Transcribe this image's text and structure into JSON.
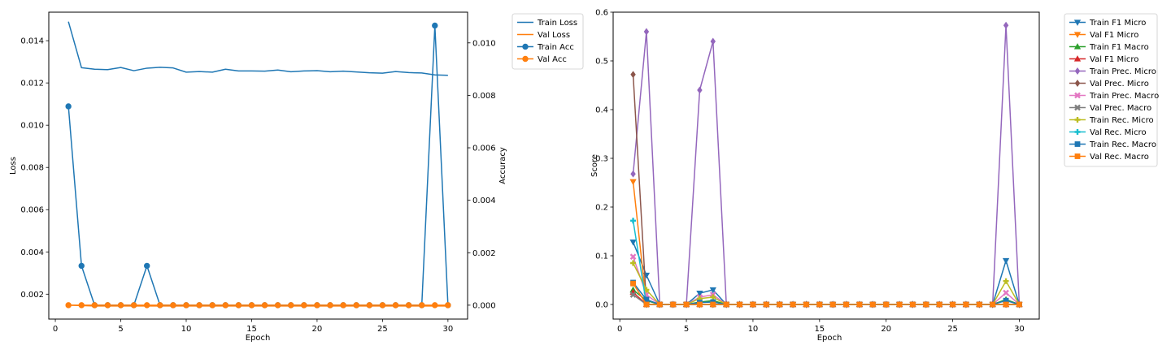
{
  "chart_data": [
    {
      "type": "line",
      "xlabel": "Epoch",
      "ylabel": "Loss",
      "y2label": "Accuracy",
      "xlim": [
        -0.5,
        31.5
      ],
      "ylim": [
        0.00082,
        0.01535
      ],
      "y2lim": [
        -0.00053,
        0.01117
      ],
      "xticks": [
        0,
        5,
        10,
        15,
        20,
        25,
        30
      ],
      "yticks": [
        0.002,
        0.004,
        0.006,
        0.008,
        0.01,
        0.012,
        0.014
      ],
      "y2ticks": [
        0.0,
        0.002,
        0.004,
        0.006,
        0.008,
        0.01
      ],
      "ytick_labels": [
        "0.002",
        "0.004",
        "0.006",
        "0.008",
        "0.010",
        "0.012",
        "0.014"
      ],
      "y2tick_labels": [
        "0.000",
        "0.002",
        "0.004",
        "0.006",
        "0.008",
        "0.010"
      ],
      "x": [
        1,
        2,
        3,
        4,
        5,
        6,
        7,
        8,
        9,
        10,
        11,
        12,
        13,
        14,
        15,
        16,
        17,
        18,
        19,
        20,
        21,
        22,
        23,
        24,
        25,
        26,
        27,
        28,
        29,
        30
      ],
      "legend": "outside-right-top",
      "series": [
        {
          "name": "Train Loss",
          "axis": "left",
          "marker": "none",
          "color": "#1f77b4",
          "values": [
            0.0149,
            0.01272,
            0.01265,
            0.01263,
            0.01273,
            0.01258,
            0.0127,
            0.01274,
            0.01271,
            0.01251,
            0.01254,
            0.01251,
            0.01265,
            0.01257,
            0.01257,
            0.01256,
            0.01261,
            0.01253,
            0.01257,
            0.01258,
            0.01253,
            0.01256,
            0.01252,
            0.01248,
            0.01246,
            0.01254,
            0.01249,
            0.01247,
            0.01238,
            0.01236
          ]
        },
        {
          "name": "Val Loss",
          "axis": "left",
          "marker": "none",
          "color": "#ff7f0e",
          "values": [
            0.00148,
            0.00146,
            0.00144,
            0.00144,
            0.00144,
            0.00144,
            0.00144,
            0.00144,
            0.00144,
            0.00144,
            0.00144,
            0.00144,
            0.00144,
            0.00144,
            0.00144,
            0.00144,
            0.00144,
            0.00144,
            0.00144,
            0.00144,
            0.00144,
            0.00144,
            0.00144,
            0.00144,
            0.00144,
            0.00144,
            0.00144,
            0.00144,
            0.00144,
            0.00144
          ]
        },
        {
          "name": "Train Acc",
          "axis": "right",
          "marker": "circle",
          "color": "#1f77b4",
          "values": [
            0.00758,
            0.0015,
            0,
            0,
            0,
            0,
            0.0015,
            0,
            0,
            0,
            0,
            0,
            0,
            0,
            0,
            0,
            0,
            0,
            0,
            0,
            0,
            0,
            0,
            0,
            0,
            0,
            0,
            0,
            0.01066,
            0
          ]
        },
        {
          "name": "Val Acc",
          "axis": "right",
          "marker": "circle",
          "color": "#ff7f0e",
          "values": [
            0,
            0,
            0,
            0,
            0,
            0,
            0,
            0,
            0,
            0,
            0,
            0,
            0,
            0,
            0,
            0,
            0,
            0,
            0,
            0,
            0,
            0,
            0,
            0,
            0,
            0,
            0,
            0,
            0,
            0
          ]
        }
      ]
    },
    {
      "type": "line",
      "xlabel": "Epoch",
      "ylabel": "Score",
      "xlim": [
        -0.5,
        31.5
      ],
      "ylim": [
        -0.03,
        0.6
      ],
      "xticks": [
        0,
        5,
        10,
        15,
        20,
        25,
        30
      ],
      "yticks": [
        0.0,
        0.1,
        0.2,
        0.3,
        0.4,
        0.5,
        0.6
      ],
      "ytick_labels": [
        "0.0",
        "0.1",
        "0.2",
        "0.3",
        "0.4",
        "0.5",
        "0.6"
      ],
      "x": [
        1,
        2,
        3,
        4,
        5,
        6,
        7,
        8,
        9,
        10,
        11,
        12,
        13,
        14,
        15,
        16,
        17,
        18,
        19,
        20,
        21,
        22,
        23,
        24,
        25,
        26,
        27,
        28,
        29,
        30
      ],
      "legend": "outside-right-top",
      "series": [
        {
          "name": "Train F1 Micro",
          "marker": "tri-down",
          "color": "#1f77b4",
          "values": [
            0.128,
            0.06,
            0,
            0,
            0,
            0.023,
            0.03,
            0,
            0,
            0,
            0,
            0,
            0,
            0,
            0,
            0,
            0,
            0,
            0,
            0,
            0,
            0,
            0,
            0,
            0,
            0,
            0,
            0,
            0.09,
            0
          ]
        },
        {
          "name": "Val F1 Micro",
          "marker": "tri-down",
          "color": "#ff7f0e",
          "values": [
            0.252,
            0,
            0,
            0,
            0,
            0,
            0,
            0,
            0,
            0,
            0,
            0,
            0,
            0,
            0,
            0,
            0,
            0,
            0,
            0,
            0,
            0,
            0,
            0,
            0,
            0,
            0,
            0,
            0,
            0
          ]
        },
        {
          "name": "Train F1 Macro",
          "marker": "tri-up",
          "color": "#2ca02c",
          "values": [
            0.03,
            0.008,
            0,
            0,
            0,
            0.005,
            0.008,
            0,
            0,
            0,
            0,
            0,
            0,
            0,
            0,
            0,
            0,
            0,
            0,
            0,
            0,
            0,
            0,
            0,
            0,
            0,
            0,
            0,
            0.01,
            0
          ]
        },
        {
          "name": "Val F1 Micro",
          "marker": "tri-up",
          "color": "#d62728",
          "values": [
            0.025,
            0,
            0,
            0,
            0,
            0,
            0,
            0,
            0,
            0,
            0,
            0,
            0,
            0,
            0,
            0,
            0,
            0,
            0,
            0,
            0,
            0,
            0,
            0,
            0,
            0,
            0,
            0,
            0,
            0
          ]
        },
        {
          "name": "Train Prec. Micro",
          "marker": "diamond",
          "color": "#9467bd",
          "values": [
            0.268,
            0.56,
            0,
            0,
            0,
            0.44,
            0.54,
            0,
            0,
            0,
            0,
            0,
            0,
            0,
            0,
            0,
            0,
            0,
            0,
            0,
            0,
            0,
            0,
            0,
            0,
            0,
            0,
            0,
            0.573,
            0
          ]
        },
        {
          "name": "Val Prec. Micro",
          "marker": "diamond",
          "color": "#8c564b",
          "values": [
            0.472,
            0,
            0,
            0,
            0,
            0,
            0,
            0,
            0,
            0,
            0,
            0,
            0,
            0,
            0,
            0,
            0,
            0,
            0,
            0,
            0,
            0,
            0,
            0,
            0,
            0,
            0,
            0,
            0,
            0
          ]
        },
        {
          "name": "Train Prec. Macro",
          "marker": "x",
          "color": "#e377c2",
          "values": [
            0.098,
            0.02,
            0,
            0,
            0,
            0.015,
            0.02,
            0,
            0,
            0,
            0,
            0,
            0,
            0,
            0,
            0,
            0,
            0,
            0,
            0,
            0,
            0,
            0,
            0,
            0,
            0,
            0,
            0,
            0.024,
            0
          ]
        },
        {
          "name": "Val Prec. Macro",
          "marker": "x",
          "color": "#7f7f7f",
          "values": [
            0.02,
            0,
            0,
            0,
            0,
            0,
            0,
            0,
            0,
            0,
            0,
            0,
            0,
            0,
            0,
            0,
            0,
            0,
            0,
            0,
            0,
            0,
            0,
            0,
            0,
            0,
            0,
            0,
            0,
            0
          ]
        },
        {
          "name": "Train Rec. Micro",
          "marker": "plus",
          "color": "#bcbd22",
          "values": [
            0.085,
            0.03,
            0,
            0,
            0,
            0.012,
            0.015,
            0,
            0,
            0,
            0,
            0,
            0,
            0,
            0,
            0,
            0,
            0,
            0,
            0,
            0,
            0,
            0,
            0,
            0,
            0,
            0,
            0,
            0.048,
            0
          ]
        },
        {
          "name": "Val Rec. Micro",
          "marker": "plus",
          "color": "#17becf",
          "values": [
            0.172,
            0,
            0,
            0,
            0,
            0,
            0,
            0,
            0,
            0,
            0,
            0,
            0,
            0,
            0,
            0,
            0,
            0,
            0,
            0,
            0,
            0,
            0,
            0,
            0,
            0,
            0,
            0,
            0,
            0
          ]
        },
        {
          "name": "Train Rec. Macro",
          "marker": "square",
          "color": "#1f77b4",
          "values": [
            0.045,
            0.01,
            0,
            0,
            0,
            0.004,
            0.005,
            0,
            0,
            0,
            0,
            0,
            0,
            0,
            0,
            0,
            0,
            0,
            0,
            0,
            0,
            0,
            0,
            0,
            0,
            0,
            0,
            0,
            0.008,
            0
          ]
        },
        {
          "name": "Val Rec. Macro",
          "marker": "square",
          "color": "#ff7f0e",
          "values": [
            0.043,
            0,
            0,
            0,
            0,
            0,
            0,
            0,
            0,
            0,
            0,
            0,
            0,
            0,
            0,
            0,
            0,
            0,
            0,
            0,
            0,
            0,
            0,
            0,
            0,
            0,
            0,
            0,
            0,
            0
          ]
        }
      ]
    }
  ]
}
